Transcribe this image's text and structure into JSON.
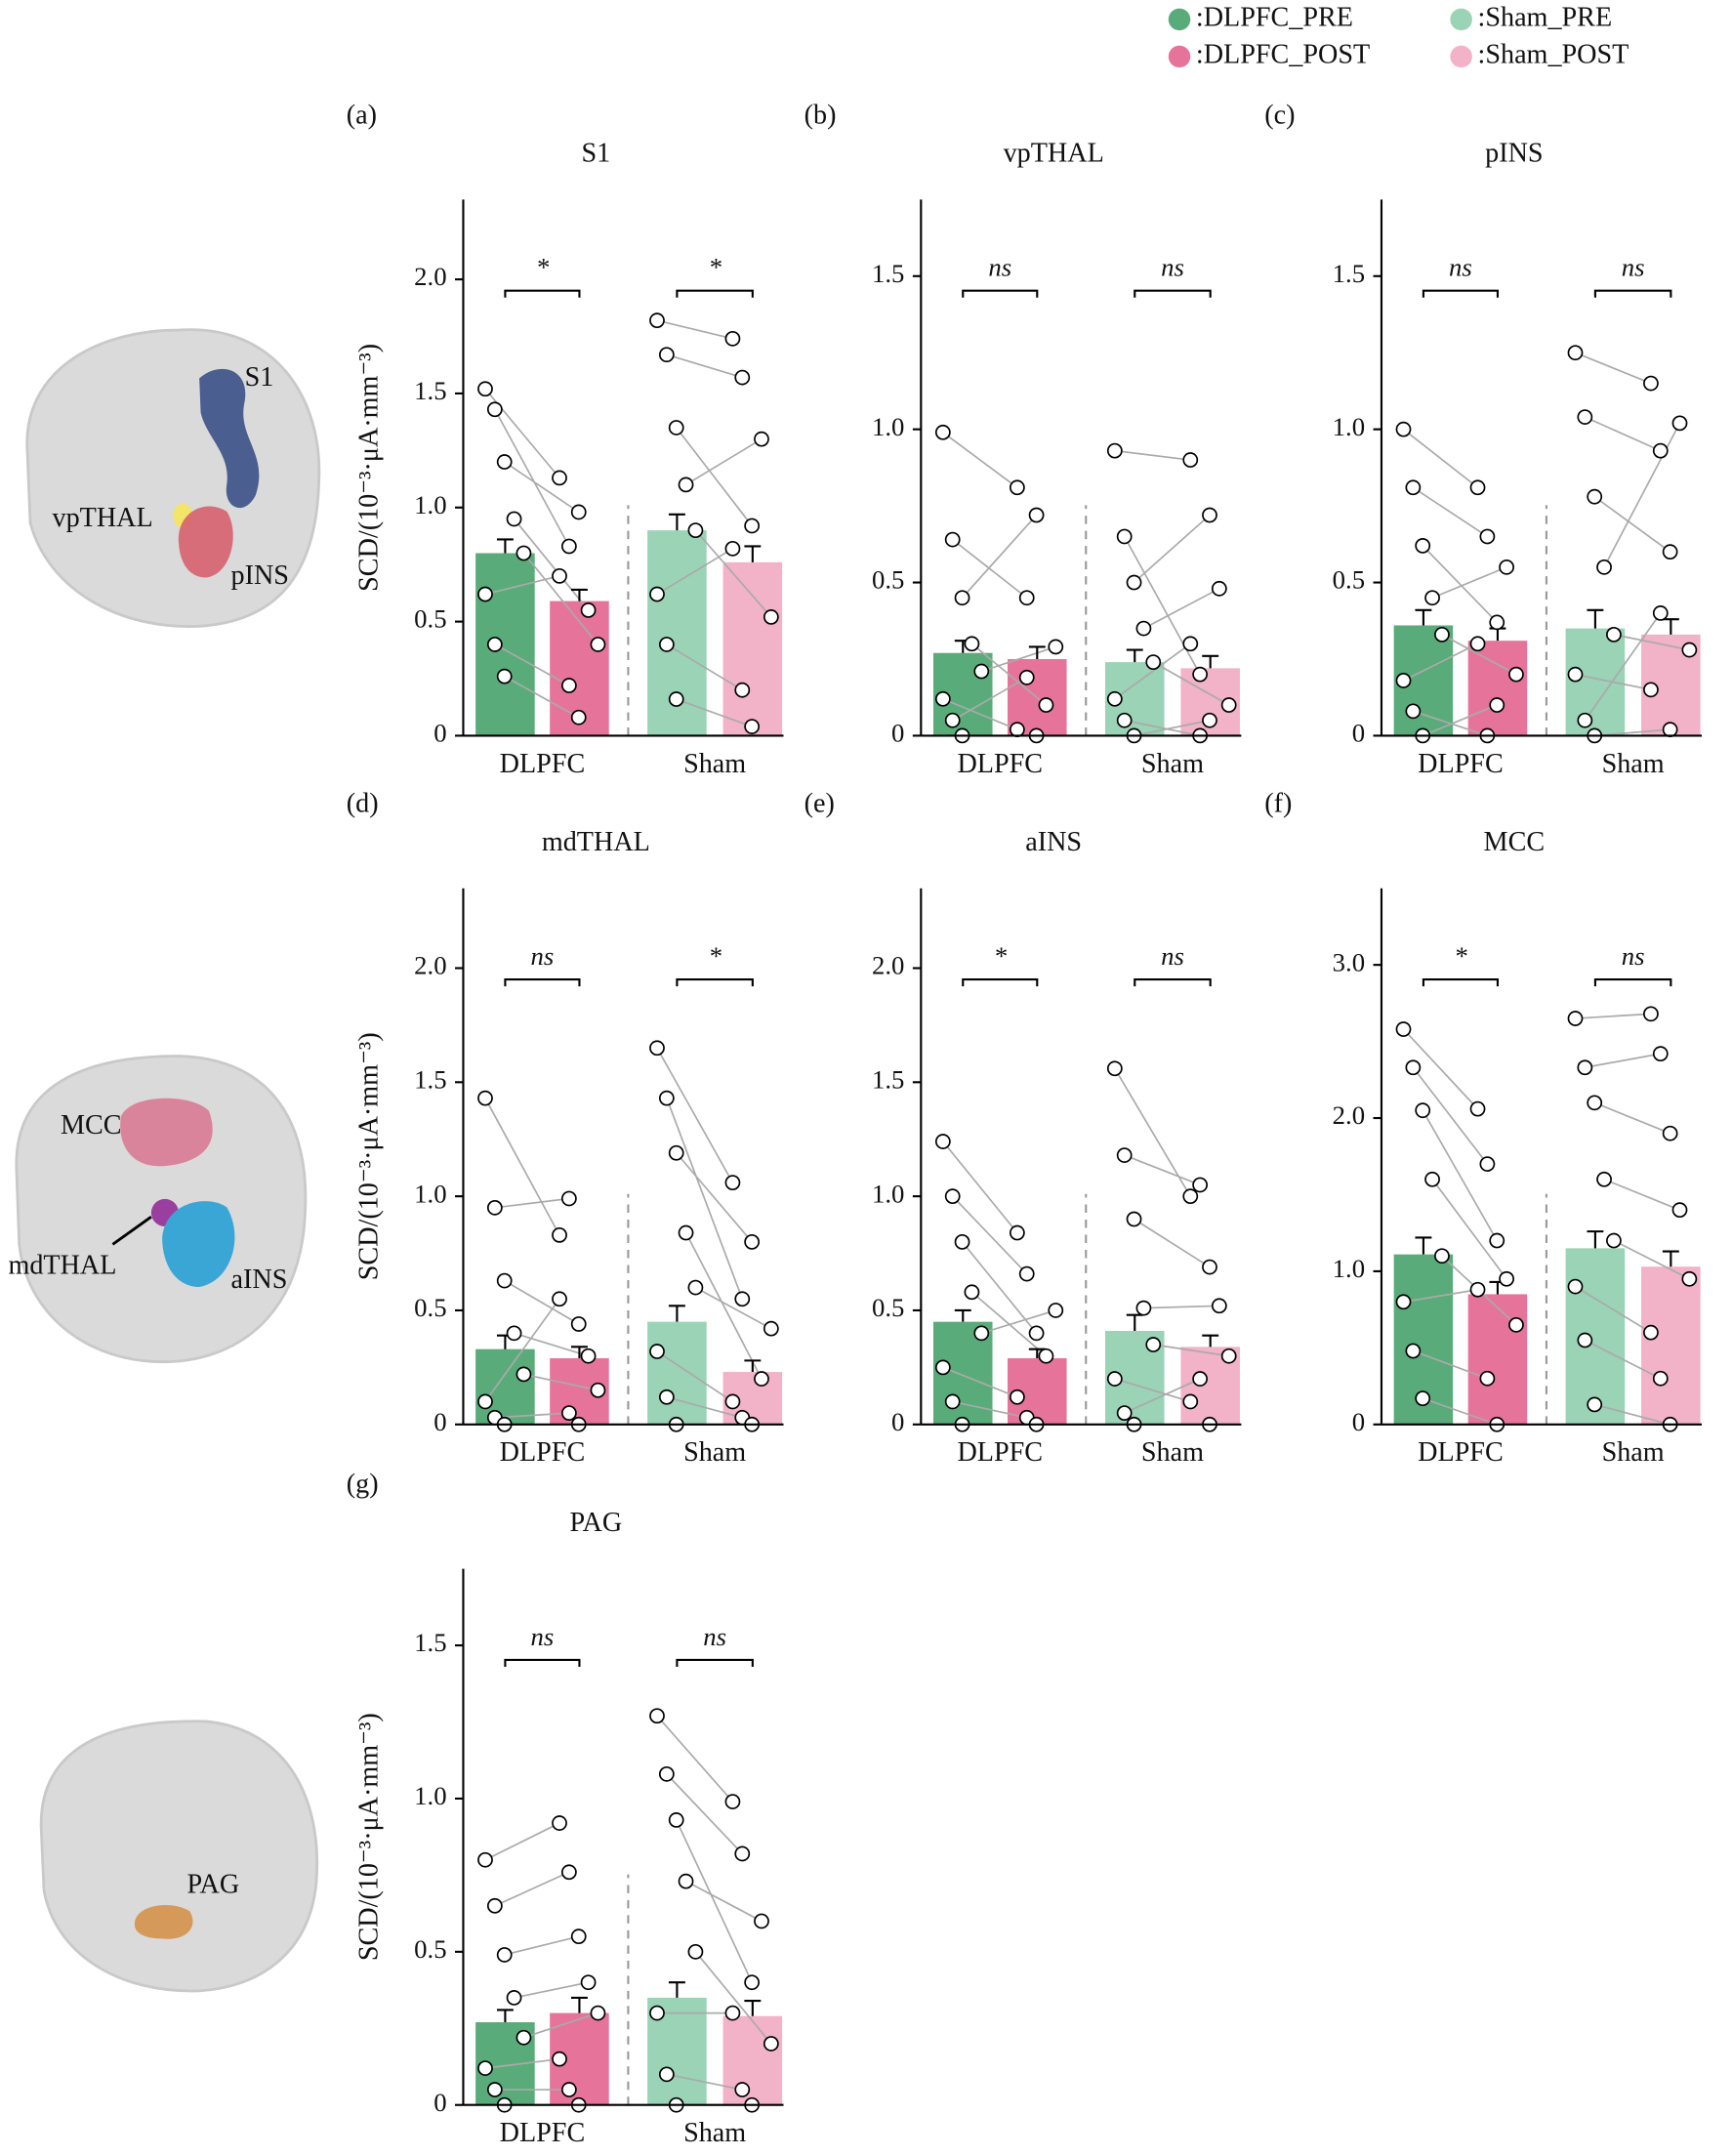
{
  "legend": [
    {
      "label": ":DLPFC_PRE",
      "color": "#5aab7a"
    },
    {
      "label": ":Sham_PRE",
      "color": "#9ad3b5"
    },
    {
      "label": ":DLPFC_POST",
      "color": "#e6749a"
    },
    {
      "label": ":Sham_POST",
      "color": "#f2b2c8"
    }
  ],
  "brain_panels": [
    {
      "labels": [
        "S1",
        "vpTHAL",
        "pINS"
      ]
    },
    {
      "labels": [
        "MCC",
        "mdTHAL",
        "aINS"
      ]
    },
    {
      "labels": [
        "PAG"
      ]
    }
  ],
  "chart_data": [
    {
      "type": "bar",
      "panel": "(a)",
      "title": "S1",
      "ylabel": "SCD/(10⁻³·μA·mm⁻³)",
      "categories": [
        "DLPFC",
        "Sham"
      ],
      "ylim": [
        0,
        2.35
      ],
      "yticks": [
        0,
        0.5,
        {
          "value": 1,
          "label": "1.0"
        },
        1.5,
        {
          "value": 2,
          "label": "2.0"
        }
      ],
      "groups": [
        {
          "significance": "*",
          "pre": {
            "mean": 0.8,
            "error": 0.06,
            "points": [
              1.52,
              1.43,
              1.2,
              0.95,
              0.8,
              0.62,
              0.4,
              0.26
            ]
          },
          "post": {
            "mean": 0.59,
            "error": 0.05,
            "points": [
              1.13,
              0.83,
              0.98,
              0.55,
              0.4,
              0.7,
              0.22,
              0.08
            ]
          }
        },
        {
          "significance": "*",
          "pre": {
            "mean": 0.9,
            "error": 0.07,
            "points": [
              1.82,
              1.67,
              1.35,
              1.1,
              0.9,
              0.62,
              0.4,
              0.16
            ]
          },
          "post": {
            "mean": 0.76,
            "error": 0.07,
            "points": [
              1.74,
              1.57,
              0.92,
              1.3,
              0.52,
              0.82,
              0.2,
              0.04
            ]
          }
        }
      ]
    },
    {
      "type": "bar",
      "panel": "(b)",
      "title": "vpTHAL",
      "categories": [
        "DLPFC",
        "Sham"
      ],
      "ylim": [
        0,
        1.75
      ],
      "yticks": [
        0,
        0.5,
        {
          "value": 1,
          "label": "1.0"
        },
        1.5
      ],
      "groups": [
        {
          "significance": "ns",
          "pre": {
            "mean": 0.27,
            "error": 0.04,
            "points": [
              0.99,
              0.64,
              0.45,
              0.3,
              0.21,
              0.12,
              0.05,
              0.0
            ]
          },
          "post": {
            "mean": 0.25,
            "error": 0.04,
            "points": [
              0.81,
              0.45,
              0.72,
              0.1,
              0.29,
              0.02,
              0.19,
              0.0
            ]
          }
        },
        {
          "significance": "ns",
          "pre": {
            "mean": 0.24,
            "error": 0.04,
            "points": [
              0.93,
              0.65,
              0.5,
              0.35,
              0.24,
              0.12,
              0.05,
              0.0
            ]
          },
          "post": {
            "mean": 0.22,
            "error": 0.04,
            "points": [
              0.9,
              0.2,
              0.72,
              0.48,
              0.1,
              0.3,
              0.0,
              0.05
            ]
          }
        }
      ]
    },
    {
      "type": "bar",
      "panel": "(c)",
      "title": "pINS",
      "categories": [
        "DLPFC",
        "Sham"
      ],
      "ylim": [
        0,
        1.75
      ],
      "yticks": [
        0,
        0.5,
        {
          "value": 1,
          "label": "1.0"
        },
        1.5
      ],
      "groups": [
        {
          "significance": "ns",
          "pre": {
            "mean": 0.36,
            "error": 0.05,
            "points": [
              1.0,
              0.81,
              0.62,
              0.45,
              0.33,
              0.18,
              0.08,
              0.0
            ]
          },
          "post": {
            "mean": 0.31,
            "error": 0.04,
            "points": [
              0.81,
              0.65,
              0.37,
              0.55,
              0.2,
              0.3,
              0.0,
              0.1
            ]
          }
        },
        {
          "significance": "ns",
          "pre": {
            "mean": 0.35,
            "error": 0.06,
            "points": [
              1.25,
              1.04,
              0.78,
              0.55,
              0.33,
              0.2,
              0.05,
              0.0
            ]
          },
          "post": {
            "mean": 0.33,
            "error": 0.05,
            "points": [
              1.15,
              0.93,
              0.6,
              1.02,
              0.28,
              0.15,
              0.4,
              0.02
            ]
          }
        }
      ]
    },
    {
      "type": "bar",
      "panel": "(d)",
      "title": "mdTHAL",
      "ylabel": "SCD/(10⁻³·μA·mm⁻³)",
      "categories": [
        "DLPFC",
        "Sham"
      ],
      "ylim": [
        0,
        2.35
      ],
      "yticks": [
        0,
        0.5,
        {
          "value": 1,
          "label": "1.0"
        },
        1.5,
        {
          "value": 2,
          "label": "2.0"
        }
      ],
      "groups": [
        {
          "significance": "ns",
          "pre": {
            "mean": 0.33,
            "error": 0.06,
            "points": [
              1.43,
              0.95,
              0.63,
              0.4,
              0.22,
              0.1,
              0.03,
              0.0
            ]
          },
          "post": {
            "mean": 0.29,
            "error": 0.05,
            "points": [
              0.83,
              0.99,
              0.44,
              0.3,
              0.15,
              0.55,
              0.05,
              0.0
            ]
          }
        },
        {
          "significance": "*",
          "pre": {
            "mean": 0.45,
            "error": 0.07,
            "points": [
              1.65,
              1.43,
              1.19,
              0.84,
              0.6,
              0.32,
              0.12,
              0.0
            ]
          },
          "post": {
            "mean": 0.23,
            "error": 0.05,
            "points": [
              1.06,
              0.55,
              0.8,
              0.2,
              0.42,
              0.1,
              0.03,
              0.0
            ]
          }
        }
      ]
    },
    {
      "type": "bar",
      "panel": "(e)",
      "title": "aINS",
      "categories": [
        "DLPFC",
        "Sham"
      ],
      "ylim": [
        0,
        2.35
      ],
      "yticks": [
        0,
        0.5,
        {
          "value": 1,
          "label": "1.0"
        },
        1.5,
        {
          "value": 2,
          "label": "2.0"
        }
      ],
      "groups": [
        {
          "significance": "*",
          "pre": {
            "mean": 0.45,
            "error": 0.05,
            "points": [
              1.24,
              1.0,
              0.8,
              0.58,
              0.4,
              0.25,
              0.1,
              0.0
            ]
          },
          "post": {
            "mean": 0.29,
            "error": 0.04,
            "points": [
              0.84,
              0.66,
              0.4,
              0.3,
              0.5,
              0.12,
              0.03,
              0.0
            ]
          }
        },
        {
          "significance": "ns",
          "pre": {
            "mean": 0.41,
            "error": 0.07,
            "points": [
              1.56,
              1.18,
              0.9,
              0.51,
              0.35,
              0.2,
              0.05,
              0.0
            ]
          },
          "post": {
            "mean": 0.34,
            "error": 0.05,
            "points": [
              1.0,
              1.05,
              0.69,
              0.52,
              0.3,
              0.1,
              0.2,
              0.0
            ]
          }
        }
      ]
    },
    {
      "type": "bar",
      "panel": "(f)",
      "title": "MCC",
      "categories": [
        "DLPFC",
        "Sham"
      ],
      "ylim": [
        0,
        3.5
      ],
      "yticks": [
        0,
        {
          "value": 1,
          "label": "1.0"
        },
        {
          "value": 2,
          "label": "2.0"
        },
        {
          "value": 3,
          "label": "3.0"
        }
      ],
      "groups": [
        {
          "significance": "*",
          "pre": {
            "mean": 1.11,
            "error": 0.11,
            "points": [
              2.58,
              2.33,
              2.05,
              1.6,
              1.1,
              0.8,
              0.48,
              0.17
            ]
          },
          "post": {
            "mean": 0.85,
            "error": 0.08,
            "points": [
              2.06,
              1.7,
              1.2,
              0.95,
              0.65,
              0.88,
              0.3,
              0.0
            ]
          }
        },
        {
          "significance": "ns",
          "pre": {
            "mean": 1.15,
            "error": 0.11,
            "points": [
              2.65,
              2.33,
              2.1,
              1.6,
              1.2,
              0.9,
              0.55,
              0.13
            ]
          },
          "post": {
            "mean": 1.03,
            "error": 0.1,
            "points": [
              2.68,
              2.42,
              1.9,
              1.4,
              0.95,
              0.6,
              0.3,
              0.0
            ]
          }
        }
      ]
    },
    {
      "type": "bar",
      "panel": "(g)",
      "title": "PAG",
      "ylabel": "SCD/(10⁻³·μA·mm⁻³)",
      "categories": [
        "DLPFC",
        "Sham"
      ],
      "ylim": [
        0,
        1.75
      ],
      "yticks": [
        0,
        0.5,
        {
          "value": 1,
          "label": "1.0"
        },
        1.5
      ],
      "groups": [
        {
          "significance": "ns",
          "pre": {
            "mean": 0.27,
            "error": 0.04,
            "points": [
              0.8,
              0.65,
              0.49,
              0.35,
              0.22,
              0.12,
              0.05,
              0.0
            ]
          },
          "post": {
            "mean": 0.3,
            "error": 0.05,
            "points": [
              0.92,
              0.76,
              0.55,
              0.4,
              0.3,
              0.15,
              0.05,
              0.0
            ]
          }
        },
        {
          "significance": "ns",
          "pre": {
            "mean": 0.35,
            "error": 0.05,
            "points": [
              1.27,
              1.08,
              0.93,
              0.73,
              0.5,
              0.3,
              0.1,
              0.0
            ]
          },
          "post": {
            "mean": 0.29,
            "error": 0.05,
            "points": [
              0.99,
              0.82,
              0.4,
              0.6,
              0.2,
              0.3,
              0.05,
              0.0
            ]
          }
        }
      ]
    }
  ]
}
